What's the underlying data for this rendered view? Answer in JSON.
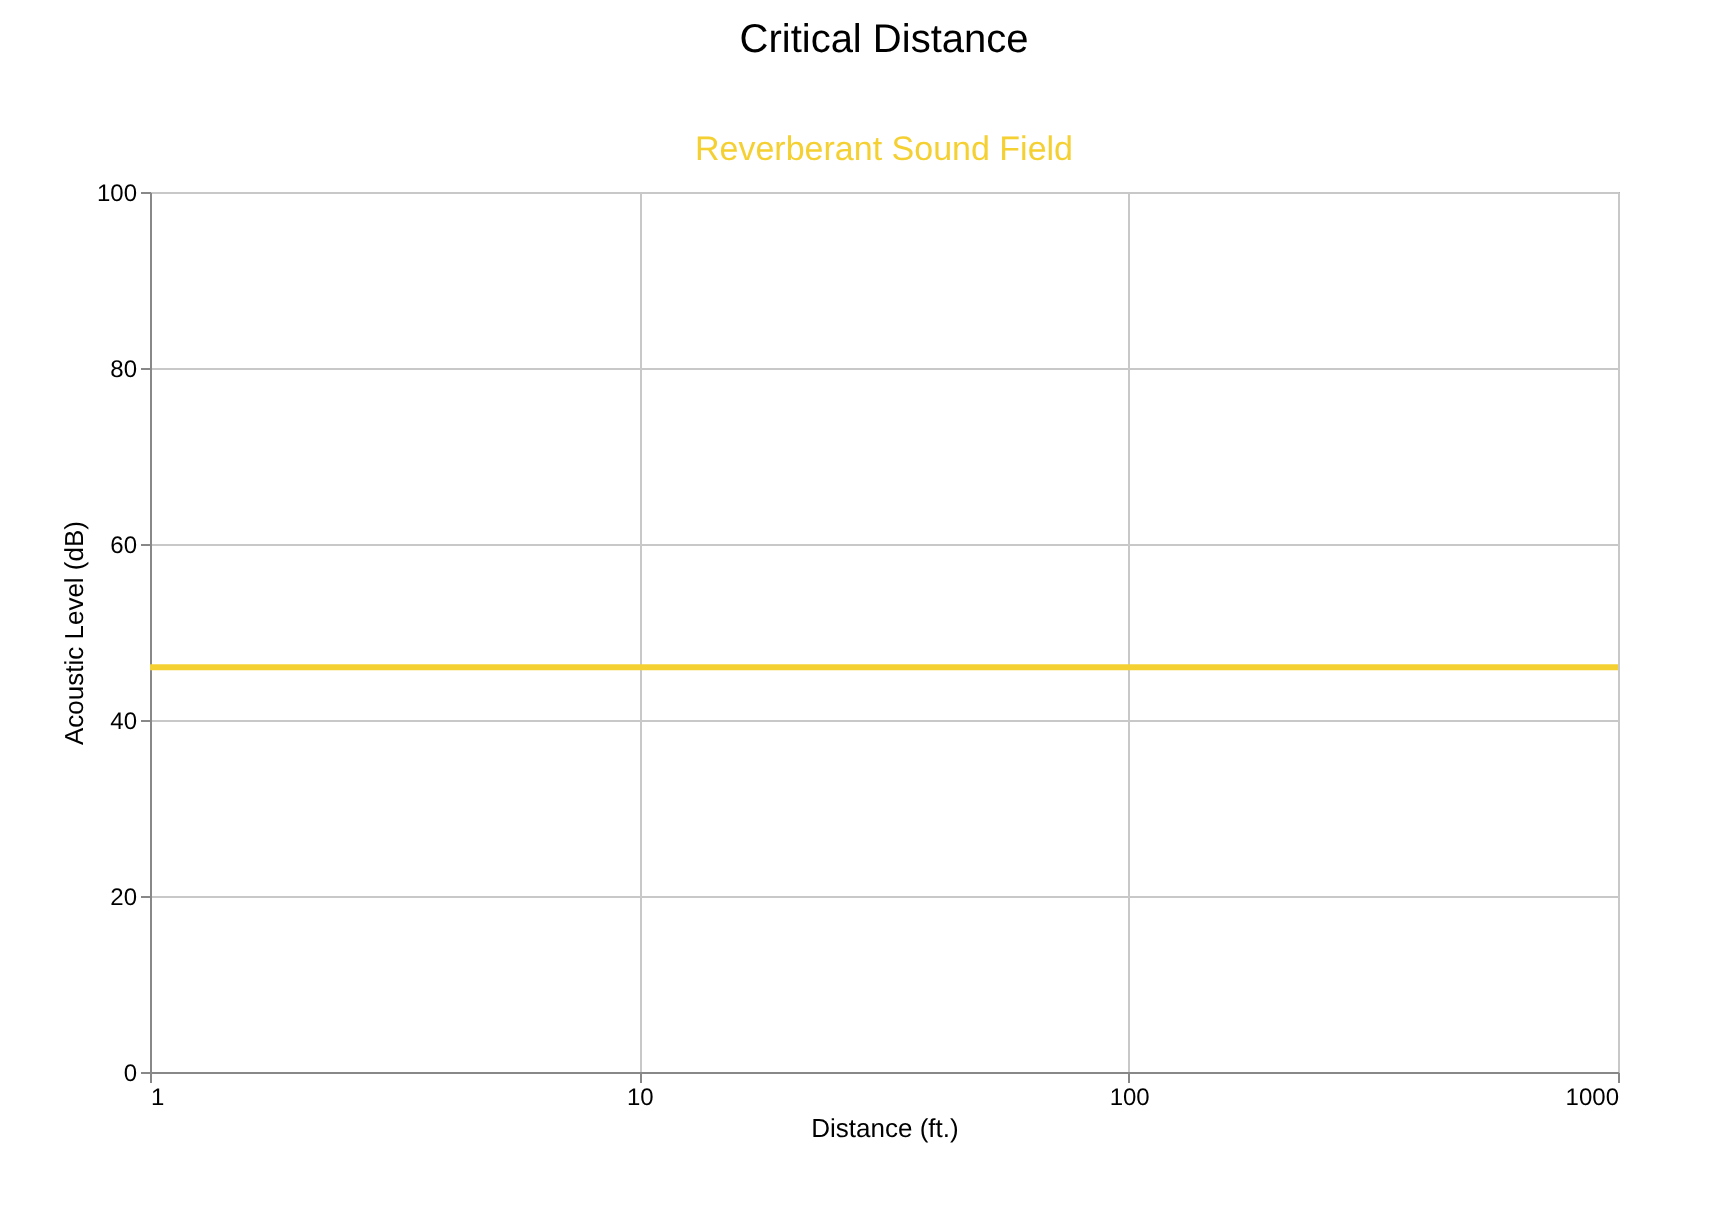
{
  "chart_data": {
    "type": "line",
    "title": "Critical Distance",
    "xlabel": "Distance (ft.)",
    "ylabel": "Acoustic Level (dB)",
    "x": [
      1,
      1000
    ],
    "series": [
      {
        "name": "Reverberant Sound Field",
        "color": "#f5d033",
        "values": [
          46,
          46
        ]
      }
    ],
    "xlim": [
      1,
      1000
    ],
    "xticks": [
      1,
      10,
      100,
      1000
    ],
    "ylim": [
      0,
      100
    ],
    "yticks": [
      0,
      20,
      40,
      60,
      80,
      100
    ],
    "log": "x",
    "grid": true,
    "legend": "top",
    "marker": "none",
    "line_style": "solid"
  }
}
